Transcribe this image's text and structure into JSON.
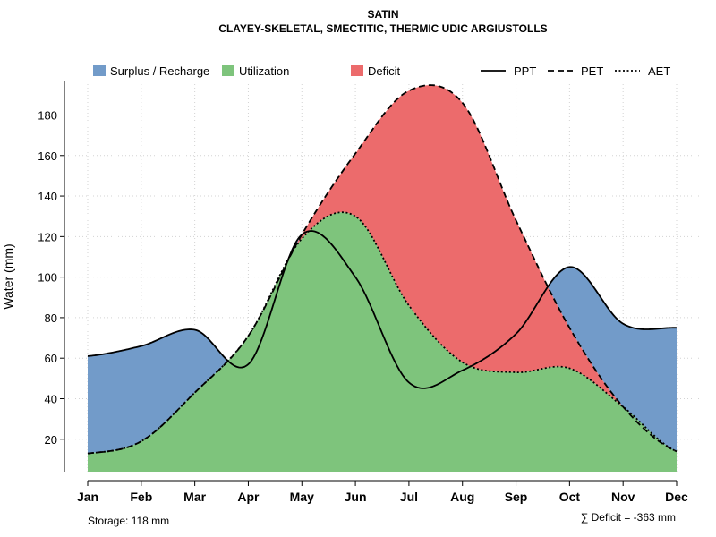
{
  "chart_data": {
    "type": "area",
    "title": "SATIN",
    "subtitle": "CLAYEY-SKELETAL, SMECTITIC, THERMIC UDIC ARGIUSTOLLS",
    "ylabel": "Water (mm)",
    "xlabel": "",
    "categories": [
      "Jan",
      "Feb",
      "Mar",
      "Apr",
      "May",
      "Jun",
      "Jul",
      "Aug",
      "Sep",
      "Oct",
      "Nov",
      "Dec"
    ],
    "yticks": [
      "20",
      "40",
      "60",
      "80",
      "100",
      "120",
      "140",
      "160",
      "180"
    ],
    "ylim": [
      4,
      197
    ],
    "grid": "on",
    "legend": [
      {
        "label": "Surplus / Recharge",
        "kind": "fill",
        "color": "#729BC9"
      },
      {
        "label": "Utilization",
        "kind": "fill",
        "color": "#7EC47C"
      },
      {
        "label": "Deficit",
        "kind": "fill",
        "color": "#EC6B6C"
      },
      {
        "label": "PPT",
        "kind": "line",
        "dash": "solid"
      },
      {
        "label": "PET",
        "kind": "line",
        "dash": "dashed"
      },
      {
        "label": "AET",
        "kind": "line",
        "dash": "dotted"
      }
    ],
    "series": [
      {
        "name": "PPT",
        "x": [
          1,
          2,
          3,
          4,
          5,
          6,
          7,
          8,
          9,
          10,
          11,
          12
        ],
        "values": [
          61,
          66,
          74,
          57,
          121,
          100,
          48,
          54,
          72,
          105,
          77,
          75
        ]
      },
      {
        "name": "PET",
        "x": [
          1,
          2,
          3,
          4,
          5,
          6,
          7,
          8,
          9,
          10,
          11,
          12
        ],
        "values": [
          13,
          19,
          43,
          71,
          121,
          161,
          192,
          186,
          128,
          75,
          36,
          14
        ]
      },
      {
        "name": "AET",
        "x": [
          1,
          2,
          3,
          4,
          5,
          6,
          7,
          8,
          9,
          10,
          11,
          12
        ],
        "values": [
          13,
          19,
          43,
          71,
          119,
          130,
          86,
          58,
          53,
          55,
          36,
          14
        ]
      }
    ],
    "storage_label": "Storage: 118 mm",
    "deficit_label": "∑ Deficit = -363 mm",
    "colors": {
      "surplus": "#729BC9",
      "utilization": "#7EC47C",
      "deficit": "#EC6B6C",
      "grid": "#d3d3d3"
    }
  }
}
